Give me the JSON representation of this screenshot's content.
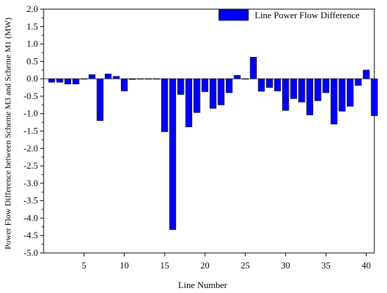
{
  "chart_data": {
    "type": "bar",
    "xlabel": "Line Number",
    "ylabel": "Power Flow Difference between Scheme M3 and Scheme M1 (MW)",
    "ylim": [
      -5.0,
      2.0
    ],
    "xlim": [
      0,
      41
    ],
    "y_ticks": [
      "-5.0",
      "-4.5",
      "-4.0",
      "-3.5",
      "-3.0",
      "-2.5",
      "-2.0",
      "-1.5",
      "-1.0",
      "-0.5",
      "0.0",
      "0.5",
      "1.0",
      "1.5",
      "2.0"
    ],
    "x_ticks": [
      "5",
      "10",
      "15",
      "20",
      "25",
      "30",
      "35",
      "40"
    ],
    "legend": {
      "position": "top-right",
      "label": "Line Power Flow Difference"
    },
    "bar_color": "#0000ff",
    "series": [
      {
        "name": "Line Power Flow Difference",
        "x": [
          1,
          2,
          3,
          4,
          5,
          6,
          7,
          8,
          9,
          10,
          11,
          12,
          13,
          14,
          15,
          16,
          17,
          18,
          19,
          20,
          21,
          22,
          23,
          24,
          25,
          26,
          27,
          28,
          29,
          30,
          31,
          32,
          33,
          34,
          35,
          36,
          37,
          38,
          39,
          40,
          41
        ],
        "values": [
          -0.1,
          -0.1,
          -0.15,
          -0.15,
          0.0,
          0.12,
          -1.2,
          0.14,
          0.07,
          -0.35,
          -0.02,
          0.0,
          0.0,
          -0.01,
          -1.52,
          -4.33,
          -0.45,
          -1.38,
          -0.97,
          -0.37,
          -0.85,
          -0.75,
          -0.4,
          0.1,
          0.0,
          0.62,
          -0.36,
          -0.25,
          -0.35,
          -0.91,
          -0.57,
          -0.67,
          -1.04,
          -0.63,
          -0.4,
          -1.3,
          -0.93,
          -0.79,
          -0.19,
          0.25,
          -1.06
        ]
      }
    ]
  }
}
